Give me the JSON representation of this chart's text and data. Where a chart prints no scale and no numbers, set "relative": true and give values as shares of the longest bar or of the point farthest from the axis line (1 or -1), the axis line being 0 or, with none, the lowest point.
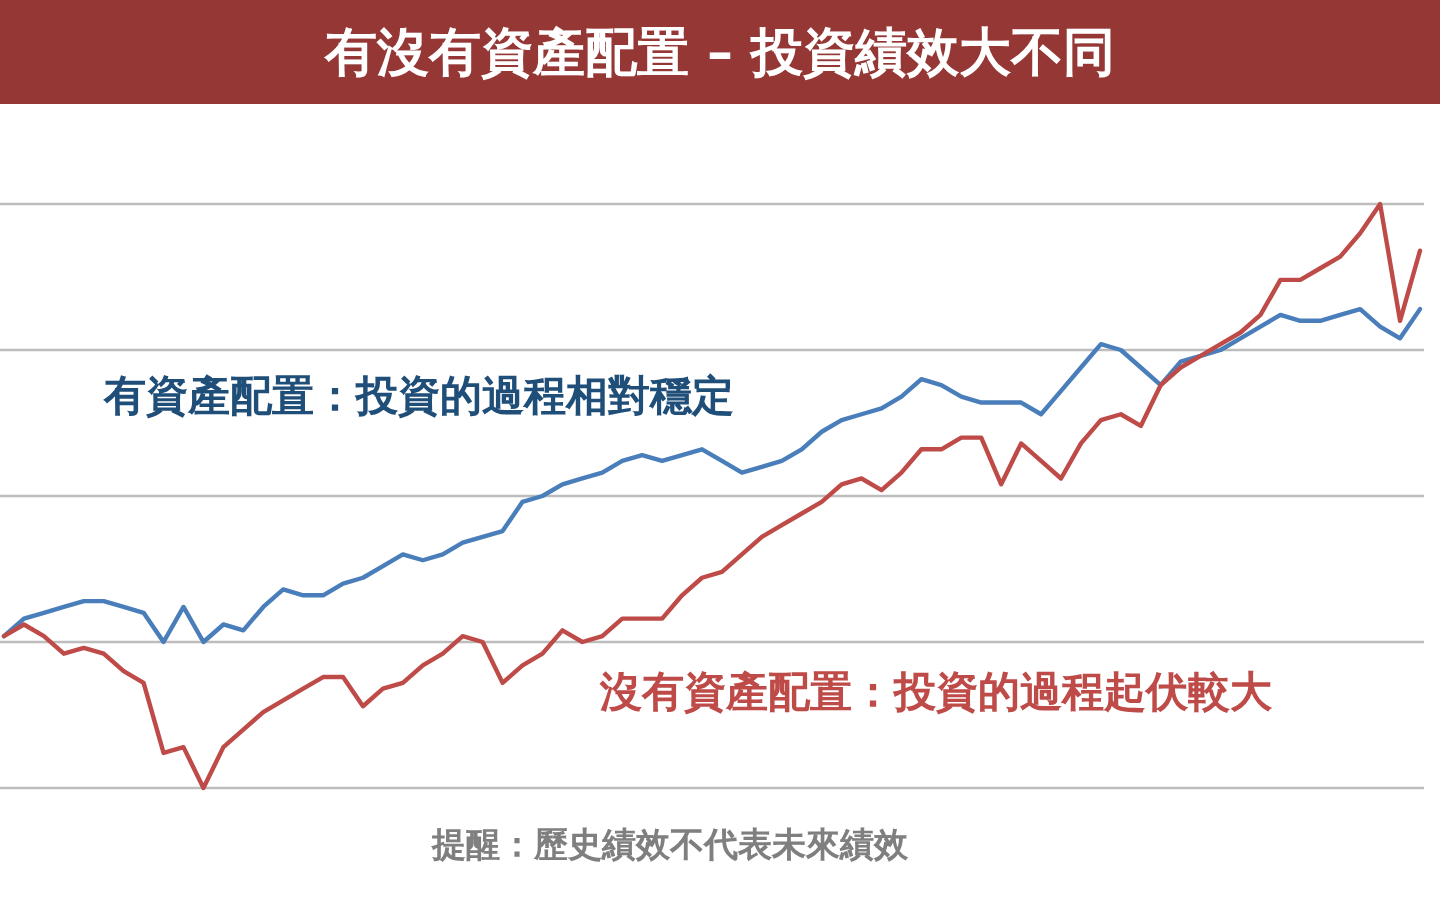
{
  "chart_data": {
    "type": "line",
    "title": "有沒有資產配置 – 投資績效大不同",
    "relative": true,
    "grid": true,
    "categories": [
      null,
      null,
      null,
      null,
      null,
      null,
      null,
      null,
      null,
      null,
      null,
      null,
      null,
      null,
      null,
      null,
      null,
      null,
      null,
      null,
      null,
      null,
      null,
      null,
      null,
      null,
      null,
      null,
      null,
      null,
      null,
      null,
      null,
      null,
      null,
      null,
      null,
      null,
      null,
      null,
      null,
      null,
      null,
      null,
      null,
      null,
      null,
      null,
      null,
      null,
      null,
      null,
      null,
      null,
      null,
      null,
      null,
      null,
      null,
      null,
      null,
      null,
      null,
      null,
      null,
      null,
      null,
      null,
      null,
      null,
      null,
      null
    ],
    "series": [
      {
        "name": "有資產配置：投資的過程相對穩定",
        "color": "#4a7ebb",
        "values": [
          0.26,
          0.29,
          0.3,
          0.31,
          0.32,
          0.32,
          0.31,
          0.3,
          0.25,
          0.31,
          0.25,
          0.28,
          0.27,
          0.31,
          0.34,
          0.33,
          0.33,
          0.35,
          0.36,
          0.38,
          0.4,
          0.39,
          0.4,
          0.42,
          0.43,
          0.44,
          0.49,
          0.5,
          0.52,
          0.53,
          0.54,
          0.56,
          0.57,
          0.56,
          0.57,
          0.58,
          0.56,
          0.54,
          0.55,
          0.56,
          0.58,
          0.61,
          0.63,
          0.64,
          0.65,
          0.67,
          0.7,
          0.69,
          0.67,
          0.66,
          0.66,
          0.66,
          0.64,
          0.68,
          0.72,
          0.76,
          0.75,
          0.72,
          0.69,
          0.73,
          0.74,
          0.75,
          0.77,
          0.79,
          0.81,
          0.8,
          0.8,
          0.81,
          0.82,
          0.79,
          0.77,
          0.82
        ]
      },
      {
        "name": "沒有資產配置：投資的過程起伏較大",
        "color": "#be4b48",
        "values": [
          0.26,
          0.28,
          0.26,
          0.23,
          0.24,
          0.23,
          0.2,
          0.18,
          0.06,
          0.07,
          0,
          0.07,
          0.1,
          0.13,
          0.15,
          0.17,
          0.19,
          0.19,
          0.14,
          0.17,
          0.18,
          0.21,
          0.23,
          0.26,
          0.25,
          0.18,
          0.21,
          0.23,
          0.27,
          0.25,
          0.26,
          0.29,
          0.29,
          0.29,
          0.33,
          0.36,
          0.37,
          0.4,
          0.43,
          0.45,
          0.47,
          0.49,
          0.52,
          0.53,
          0.51,
          0.54,
          0.58,
          0.58,
          0.6,
          0.6,
          0.52,
          0.59,
          0.56,
          0.53,
          0.59,
          0.63,
          0.64,
          0.62,
          0.69,
          0.72,
          0.74,
          0.76,
          0.78,
          0.81,
          0.87,
          0.87,
          0.89,
          0.91,
          0.95,
          1,
          0.8,
          0.92
        ]
      }
    ],
    "annotations": [
      "提醒：歷史績效不代表未來績效"
    ]
  }
}
